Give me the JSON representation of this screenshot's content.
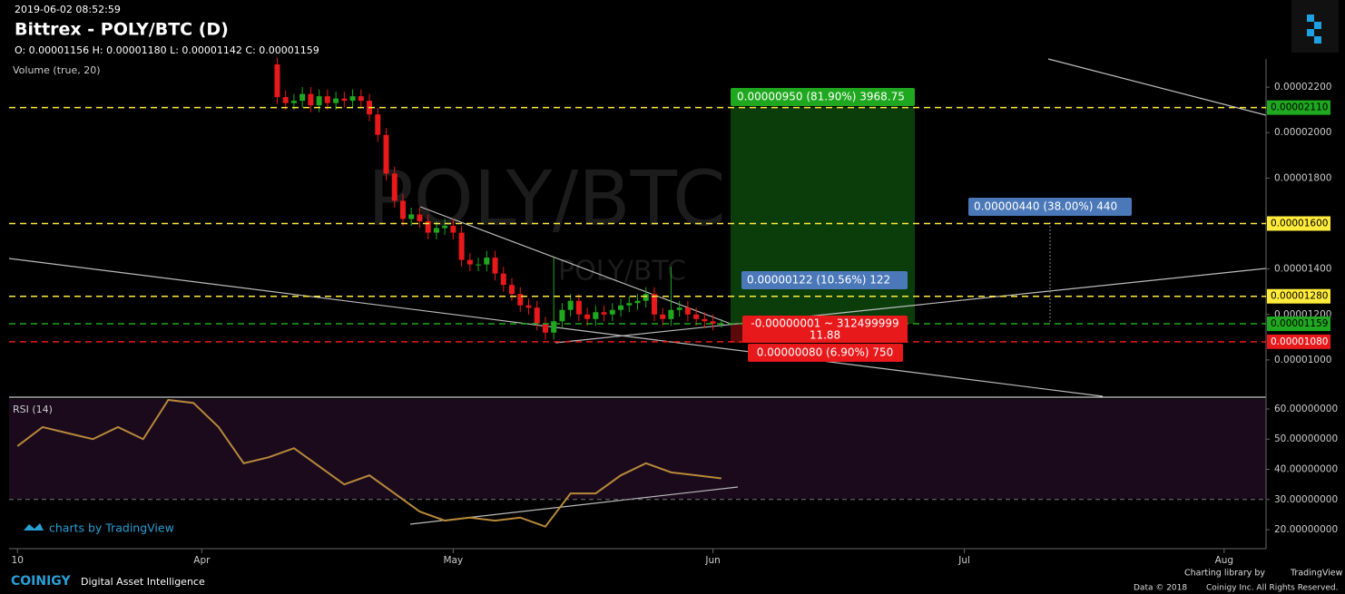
{
  "header": {
    "timestamp": "2019-06-02 08:52:59",
    "title": "Bittrex - POLY/BTC (D)",
    "ohlc": "O: 0.00001156 H: 0.00001180 L: 0.00001142 C: 0.00001159",
    "volume_label": "Volume (true, 20)",
    "watermark": "POLY/BTC, D",
    "watermark_small": "POLY/BTC"
  },
  "chart_data": [
    {
      "type": "candlestick",
      "x": [
        "2019-04-10",
        "2019-04-11",
        "2019-04-12",
        "2019-04-13",
        "2019-04-14",
        "2019-04-15",
        "2019-04-16",
        "2019-04-17",
        "2019-04-18",
        "2019-04-19",
        "2019-04-20",
        "2019-04-21",
        "2019-04-22",
        "2019-04-23",
        "2019-04-24",
        "2019-04-25",
        "2019-04-26",
        "2019-04-27",
        "2019-04-28",
        "2019-04-29",
        "2019-04-30",
        "2019-05-01",
        "2019-05-02",
        "2019-05-03",
        "2019-05-04",
        "2019-05-05",
        "2019-05-06",
        "2019-05-07",
        "2019-05-08",
        "2019-05-09",
        "2019-05-10",
        "2019-05-11",
        "2019-05-12",
        "2019-05-13",
        "2019-05-14",
        "2019-05-15",
        "2019-05-16",
        "2019-05-17",
        "2019-05-18",
        "2019-05-19",
        "2019-05-20",
        "2019-05-21",
        "2019-05-22",
        "2019-05-23",
        "2019-05-24",
        "2019-05-25",
        "2019-05-26",
        "2019-05-27",
        "2019-05-28",
        "2019-05-29",
        "2019-05-30",
        "2019-05-31",
        "2019-06-01",
        "2019-06-02"
      ],
      "open": [
        2.3e-05,
        2.156e-05,
        2.13e-05,
        2.14e-05,
        2.17e-05,
        2.12e-05,
        2.16e-05,
        2.13e-05,
        2.15e-05,
        2.14e-05,
        2.16e-05,
        2.14e-05,
        2.08e-05,
        1.99e-05,
        1.82e-05,
        1.7e-05,
        1.62e-05,
        1.64e-05,
        1.61e-05,
        1.56e-05,
        1.58e-05,
        1.59e-05,
        1.56e-05,
        1.44e-05,
        1.42e-05,
        1.42e-05,
        1.45e-05,
        1.38e-05,
        1.33e-05,
        1.29e-05,
        1.24e-05,
        1.23e-05,
        1.16e-05,
        1.12e-05,
        1.17e-05,
        1.22e-05,
        1.26e-05,
        1.2e-05,
        1.18e-05,
        1.21e-05,
        1.2e-05,
        1.22e-05,
        1.24e-05,
        1.25e-05,
        1.26e-05,
        1.29e-05,
        1.2e-05,
        1.18e-05,
        1.22e-05,
        1.23e-05,
        1.2e-05,
        1.18e-05,
        1.17e-05,
        1.156e-05
      ],
      "high": [
        2.33e-05,
        2.186e-05,
        2.17e-05,
        2.2e-05,
        2.2e-05,
        2.19e-05,
        2.19e-05,
        2.18e-05,
        2.18e-05,
        2.19e-05,
        2.19e-05,
        2.17e-05,
        2.11e-05,
        2.02e-05,
        1.85e-05,
        1.73e-05,
        1.67e-05,
        1.67e-05,
        1.64e-05,
        1.61e-05,
        1.62e-05,
        1.62e-05,
        1.59e-05,
        1.47e-05,
        1.45e-05,
        1.48e-05,
        1.48e-05,
        1.41e-05,
        1.36e-05,
        1.32e-05,
        1.27e-05,
        1.26e-05,
        1.19e-05,
        1.45e-05,
        1.25e-05,
        1.29e-05,
        1.29e-05,
        1.23e-05,
        1.24e-05,
        1.24e-05,
        1.25e-05,
        1.27e-05,
        1.28e-05,
        1.29e-05,
        1.32e-05,
        1.32e-05,
        1.23e-05,
        1.41e-05,
        1.26e-05,
        1.26e-05,
        1.23e-05,
        1.21e-05,
        1.2e-05,
        1.18e-05
      ],
      "low": [
        2.126e-05,
        2.1e-05,
        2.1e-05,
        2.11e-05,
        2.09e-05,
        2.09e-05,
        2.1e-05,
        2.1e-05,
        2.11e-05,
        2.11e-05,
        2.11e-05,
        2.05e-05,
        1.96e-05,
        1.79e-05,
        1.67e-05,
        1.59e-05,
        1.59e-05,
        1.58e-05,
        1.53e-05,
        1.53e-05,
        1.55e-05,
        1.53e-05,
        1.41e-05,
        1.39e-05,
        1.39e-05,
        1.39e-05,
        1.35e-05,
        1.3e-05,
        1.26e-05,
        1.21e-05,
        1.2e-05,
        1.13e-05,
        1.09e-05,
        1.09e-05,
        1.14e-05,
        1.19e-05,
        1.17e-05,
        1.15e-05,
        1.15e-05,
        1.17e-05,
        1.17e-05,
        1.19e-05,
        1.21e-05,
        1.22e-05,
        1.23e-05,
        1.17e-05,
        1.15e-05,
        1.15e-05,
        1.19e-05,
        1.17e-05,
        1.15e-05,
        1.14e-05,
        1.13e-05,
        1.142e-05
      ],
      "close": [
        2.156e-05,
        2.13e-05,
        2.14e-05,
        2.17e-05,
        2.12e-05,
        2.16e-05,
        2.13e-05,
        2.15e-05,
        2.14e-05,
        2.16e-05,
        2.14e-05,
        2.08e-05,
        1.99e-05,
        1.82e-05,
        1.7e-05,
        1.62e-05,
        1.64e-05,
        1.61e-05,
        1.56e-05,
        1.58e-05,
        1.59e-05,
        1.56e-05,
        1.44e-05,
        1.42e-05,
        1.42e-05,
        1.45e-05,
        1.38e-05,
        1.33e-05,
        1.29e-05,
        1.24e-05,
        1.23e-05,
        1.16e-05,
        1.12e-05,
        1.17e-05,
        1.22e-05,
        1.26e-05,
        1.2e-05,
        1.18e-05,
        1.21e-05,
        1.2e-05,
        1.22e-05,
        1.24e-05,
        1.25e-05,
        1.26e-05,
        1.29e-05,
        1.2e-05,
        1.18e-05,
        1.22e-05,
        1.23e-05,
        1.2e-05,
        1.18e-05,
        1.17e-05,
        1.16e-05,
        1.159e-05
      ],
      "up_color": "#1fa81f",
      "down_color": "#e8191b",
      "xlim": [
        "2019-03-09",
        "2019-08-06"
      ],
      "xticks": [
        {
          "value": "2019-03-10",
          "label": "10"
        },
        {
          "value": "2019-04-01",
          "label": "Apr"
        },
        {
          "value": "2019-05-01",
          "label": "May"
        },
        {
          "value": "2019-06-01",
          "label": "Jun"
        },
        {
          "value": "2019-07-01",
          "label": "Jul"
        },
        {
          "value": "2019-08-01",
          "label": "Aug"
        }
      ],
      "ylim": [
        8.4e-06,
        2.324e-05
      ],
      "yticks": [
        {
          "value": 1e-05,
          "label": "0.00001000"
        },
        {
          "value": 1.2e-05,
          "label": "0.00001200"
        },
        {
          "value": 1.4e-05,
          "label": "0.00001400"
        },
        {
          "value": 1.8e-05,
          "label": "0.00001800"
        },
        {
          "value": 2e-05,
          "label": "0.00002000"
        },
        {
          "value": 2.2e-05,
          "label": "0.00002200"
        }
      ],
      "hlines": [
        {
          "value": 2.11e-05,
          "label": "0.00002110",
          "color": "#ffeb3b",
          "label_bg": "#1fa81f"
        },
        {
          "value": 1.6e-05,
          "label": "0.00001600",
          "color": "#ffeb3b",
          "label_bg": "#ffeb3b"
        },
        {
          "value": 1.28e-05,
          "label": "0.00001280",
          "color": "#ffeb3b",
          "label_bg": "#ffeb3b"
        },
        {
          "value": 1.159e-05,
          "label": "0.00001159",
          "color": "#1fa81f",
          "label_bg": "#1fa81f"
        },
        {
          "value": 1.08e-05,
          "label": "0.00001080",
          "color": "#e8191b",
          "label_bg": "#e8191b"
        }
      ],
      "annotations": [
        "0.00000950 (81.90%) 3968.75",
        "0.00000440 (38.00%) 440",
        "0.00000122 (10.56%) 122",
        "-0.00000001 ~ 312499999",
        "11.88",
        "0.00000080 (6.90%) 750"
      ]
    },
    {
      "type": "line",
      "title": "RSI (14)",
      "color": "#b8893a",
      "x": [
        "2019-03-10",
        "2019-03-13",
        "2019-03-16",
        "2019-03-19",
        "2019-03-22",
        "2019-03-25",
        "2019-03-28",
        "2019-03-31",
        "2019-04-03",
        "2019-04-06",
        "2019-04-09",
        "2019-04-12",
        "2019-04-15",
        "2019-04-18",
        "2019-04-21",
        "2019-04-24",
        "2019-04-27",
        "2019-04-30",
        "2019-05-03",
        "2019-05-06",
        "2019-05-09",
        "2019-05-12",
        "2019-05-15",
        "2019-05-18",
        "2019-05-21",
        "2019-05-24",
        "2019-05-27",
        "2019-05-30",
        "2019-06-02"
      ],
      "values": [
        47.7,
        54,
        52,
        50,
        54,
        50,
        63,
        62,
        54,
        42,
        44,
        47,
        41,
        35,
        38,
        32,
        26,
        23,
        24,
        23,
        24,
        21,
        32,
        32,
        38,
        42,
        39,
        38,
        37
      ],
      "ylim": [
        13.7,
        63.3
      ],
      "yticks": [
        {
          "value": 20,
          "label": "20.00000000"
        },
        {
          "value": 30,
          "label": "30.00000000"
        },
        {
          "value": 40,
          "label": "40.00000000"
        },
        {
          "value": 50,
          "label": "50.00000000"
        },
        {
          "value": 60,
          "label": "60.00000000"
        }
      ]
    }
  ],
  "footer": {
    "tradingview": "charts by TradingView",
    "brand": "COINIGY",
    "tagline": "Digital Asset Intelligence",
    "library": "Charting library by",
    "library_name": "TradingView",
    "copyright_left": "Data © 2018",
    "copyright_right": "Coinigy Inc. All Rights Reserved."
  }
}
